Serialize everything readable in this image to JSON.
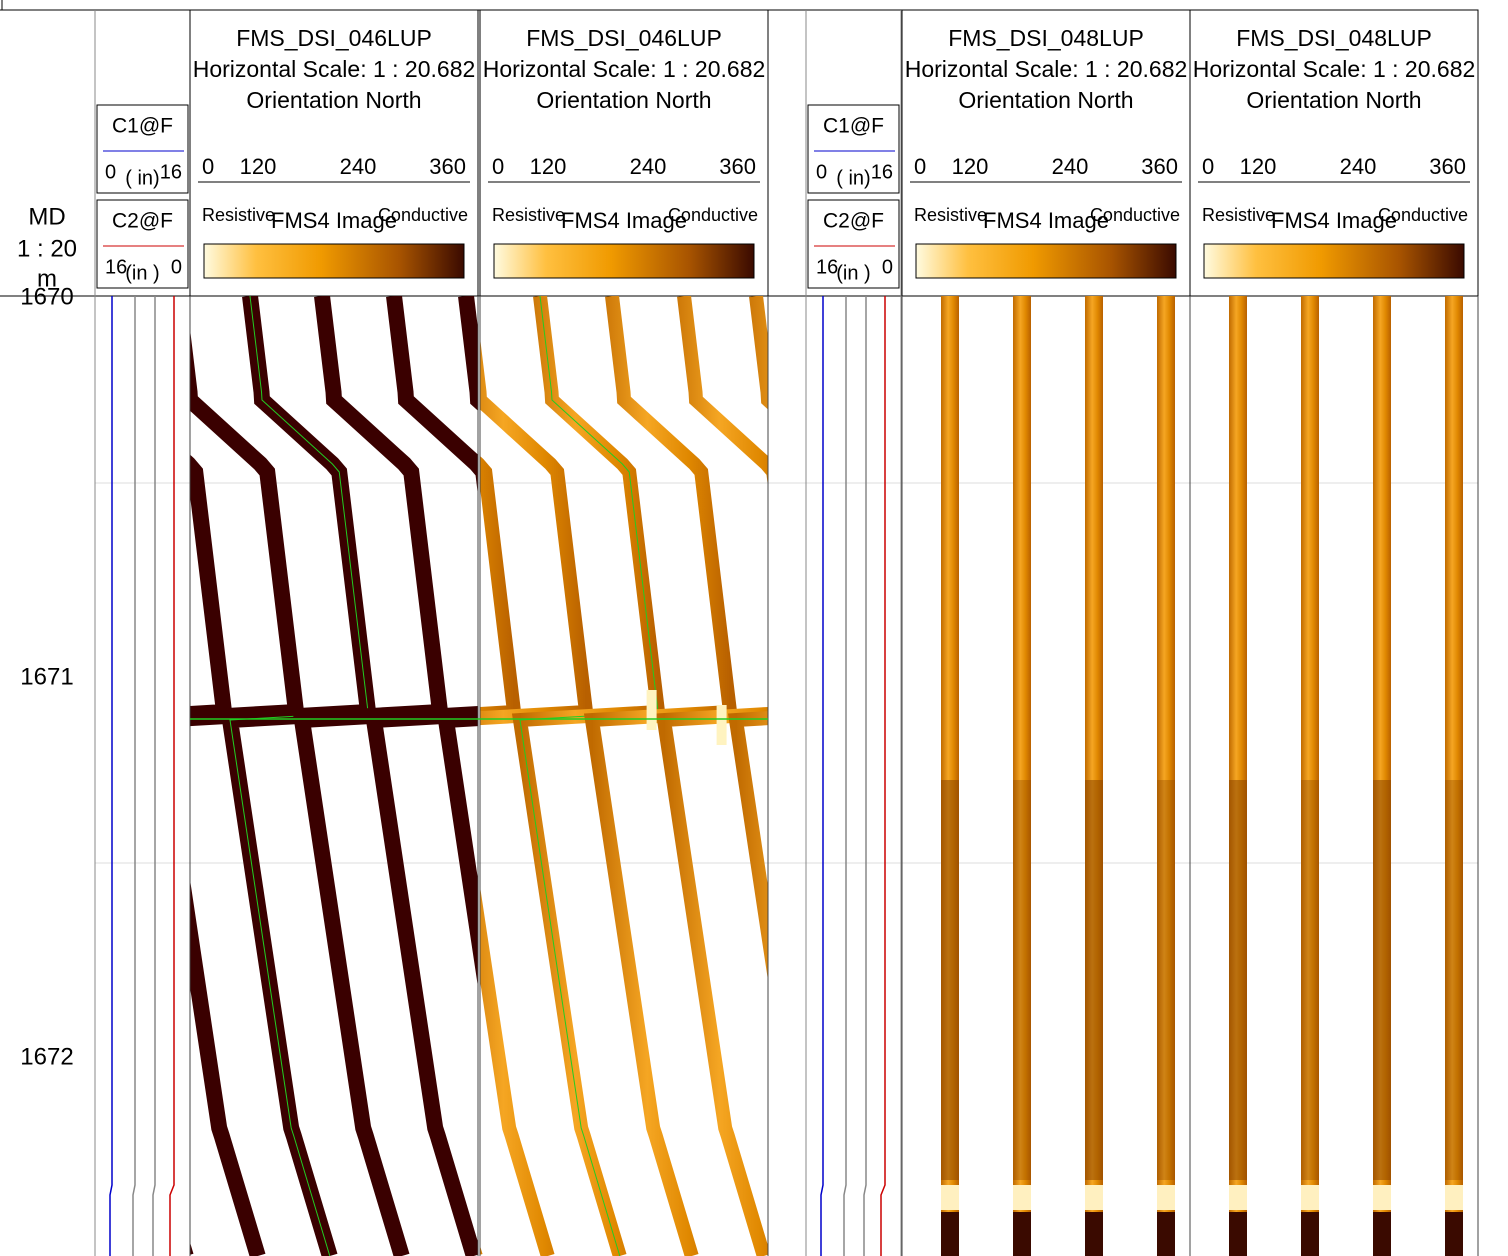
{
  "depth_track": {
    "label": "MD",
    "scale": "1 : 20",
    "unit": "m",
    "depths": [
      "1670",
      "1671",
      "1672"
    ]
  },
  "caliper_tracks": [
    {
      "curves": [
        {
          "name": "C1@F",
          "min": "0",
          "unit": "( in)",
          "max": "16"
        },
        {
          "name": "C2@F",
          "min": "16",
          "unit": "(in )",
          "max": "0"
        }
      ]
    },
    {
      "curves": [
        {
          "name": "C1@F",
          "min": "0",
          "unit": "( in)",
          "max": "16"
        },
        {
          "name": "C2@F",
          "min": "16",
          "unit": "(in )",
          "max": "0"
        }
      ]
    }
  ],
  "image_tracks": [
    {
      "title": "FMS_DSI_046LUP",
      "scale": "Horizontal Scale: 1 : 20.682",
      "orientation": "Orientation North",
      "ticks": [
        "0",
        "120",
        "240",
        "360"
      ],
      "left": "Resistive",
      "name": "FMS4  Image",
      "right": "Conductive"
    },
    {
      "title": "FMS_DSI_046LUP",
      "scale": "Horizontal Scale: 1 : 20.682",
      "orientation": "Orientation North",
      "ticks": [
        "0",
        "120",
        "240",
        "360"
      ],
      "left": "Resistive",
      "name": "FMS4  Image",
      "right": "Conductive"
    },
    {
      "title": "FMS_DSI_048LUP",
      "scale": "Horizontal Scale: 1 : 20.682",
      "orientation": "Orientation North",
      "ticks": [
        "0",
        "120",
        "240",
        "360"
      ],
      "left": "Resistive",
      "name": "FMS4  Image",
      "right": "Conductive"
    },
    {
      "title": "FMS_DSI_048LUP",
      "scale": "Horizontal Scale: 1 : 20.682",
      "orientation": "Orientation North",
      "ticks": [
        "0",
        "120",
        "240",
        "360"
      ],
      "left": "Resistive",
      "name": "FMS4  Image",
      "right": "Conductive"
    }
  ]
}
